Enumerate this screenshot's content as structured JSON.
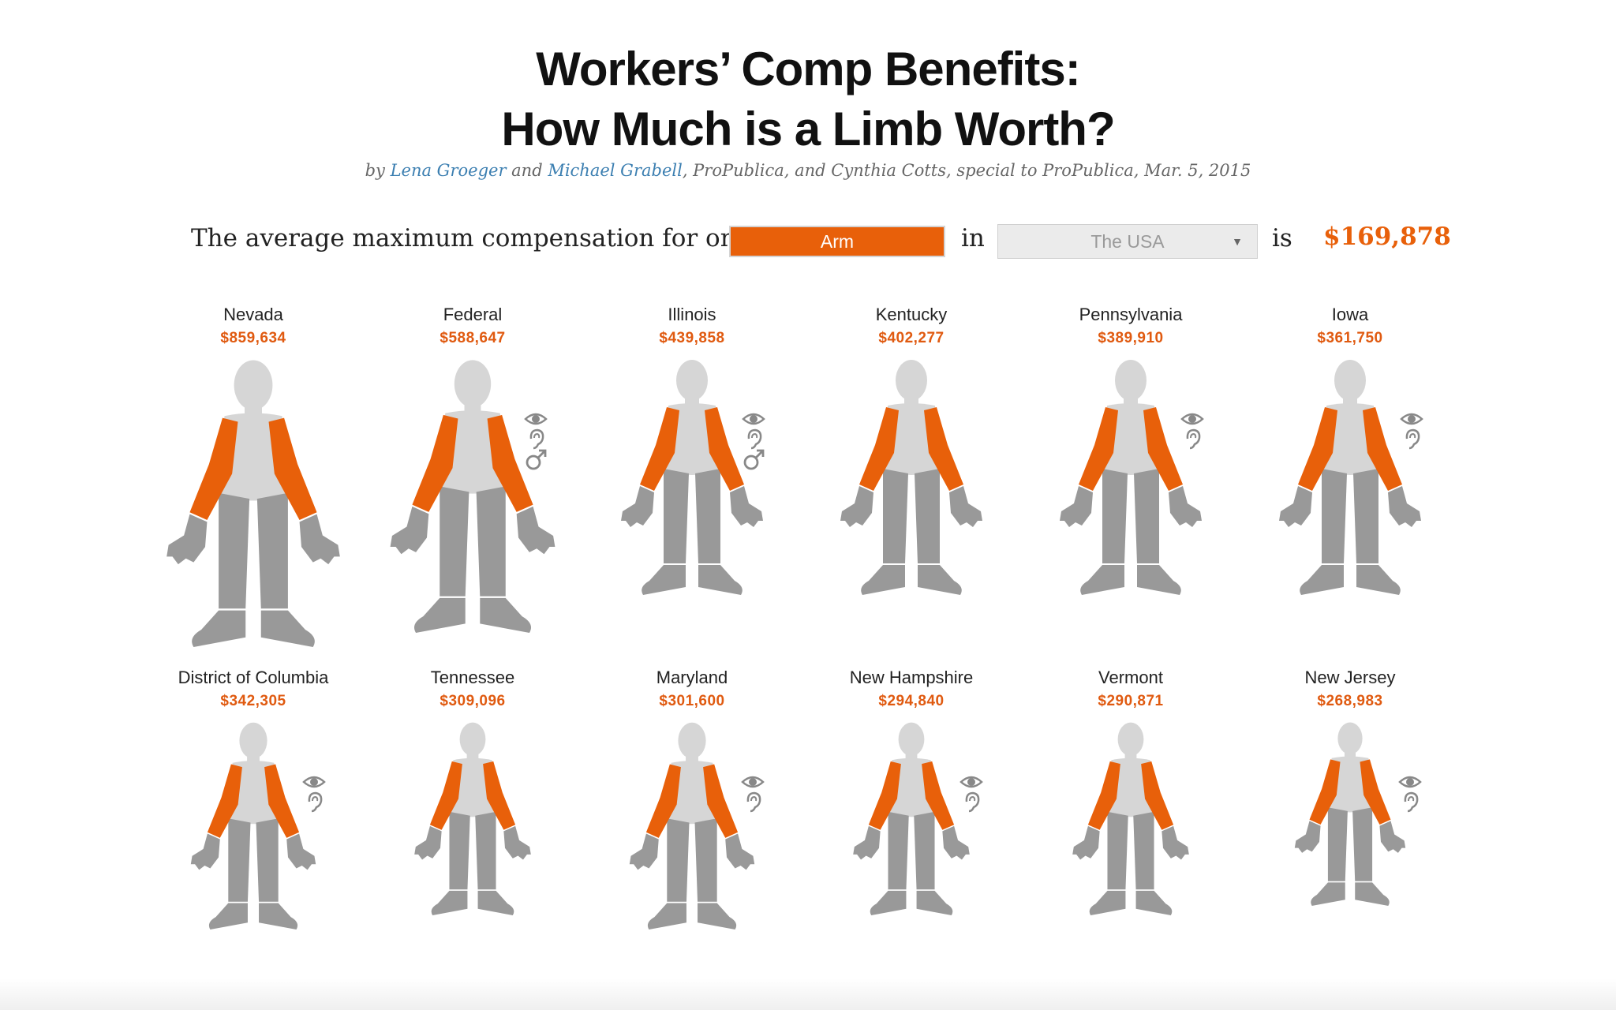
{
  "header": {
    "title_line1": "Workers’ Comp Benefits:",
    "title_line2": "How Much is a Limb Worth?",
    "byline": {
      "prefix": "by ",
      "author1": "Lena Groeger",
      "mid": " and ",
      "author2": "Michael Grabell",
      "suffix": ", ProPublica, and Cynthia Cotts, special to ProPublica, Mar. 5, 2015"
    }
  },
  "selector": {
    "lead_text": "The average maximum compensation for one",
    "limb_value": "Arm",
    "in_text": "in",
    "place_value": "The USA",
    "is_text": "is",
    "total": "$169,878"
  },
  "colors": {
    "accent": "#e8600a",
    "body_light": "#d6d6d6",
    "limb_gray": "#999999",
    "link": "#3c7fb1"
  },
  "states": [
    {
      "name": "Nevada",
      "amount": "$859,634",
      "icons": []
    },
    {
      "name": "Federal",
      "amount": "$588,647",
      "icons": [
        "eye-icon",
        "ear-icon",
        "male-icon"
      ]
    },
    {
      "name": "Illinois",
      "amount": "$439,858",
      "icons": [
        "eye-icon",
        "ear-icon",
        "male-icon"
      ]
    },
    {
      "name": "Kentucky",
      "amount": "$402,277",
      "icons": []
    },
    {
      "name": "Pennsylvania",
      "amount": "$389,910",
      "icons": [
        "eye-icon",
        "ear-icon"
      ]
    },
    {
      "name": "Iowa",
      "amount": "$361,750",
      "icons": [
        "eye-icon",
        "ear-icon"
      ]
    },
    {
      "name": "District of Columbia",
      "amount": "$342,305",
      "icons": [
        "eye-icon",
        "ear-icon"
      ]
    },
    {
      "name": "Tennessee",
      "amount": "$309,096",
      "icons": []
    },
    {
      "name": "Maryland",
      "amount": "$301,600",
      "icons": [
        "eye-icon",
        "ear-icon"
      ]
    },
    {
      "name": "New Hampshire",
      "amount": "$294,840",
      "icons": [
        "eye-icon",
        "ear-icon"
      ]
    },
    {
      "name": "Vermont",
      "amount": "$290,871",
      "icons": []
    },
    {
      "name": "New Jersey",
      "amount": "$268,983",
      "icons": [
        "eye-icon",
        "ear-icon"
      ]
    }
  ]
}
